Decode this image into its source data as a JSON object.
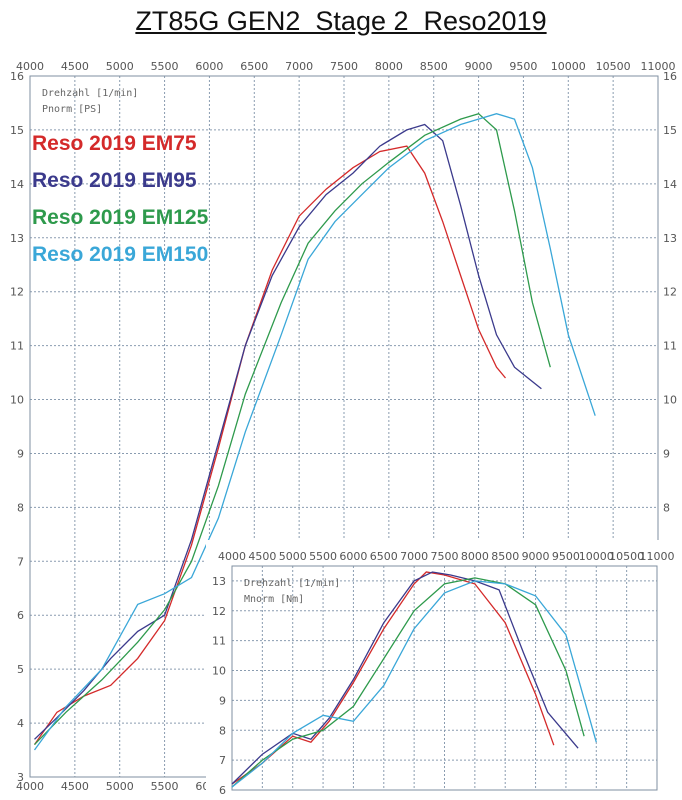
{
  "title": "ZT85G GEN2  Stage 2  Reso2019",
  "colors": {
    "EM75": "#d42a2a",
    "EM95": "#3b3a8c",
    "EM125": "#2e9a4c",
    "EM150": "#3aa7d8",
    "grid": "#8a9cb0"
  },
  "chart_data": [
    {
      "type": "line",
      "name": "power",
      "xticks": [
        4000,
        4500,
        5000,
        5500,
        6000,
        6500,
        7000,
        7500,
        8000,
        8500,
        9000,
        9500,
        10000,
        10500,
        11000
      ],
      "yticks": [
        3,
        4,
        5,
        6,
        7,
        8,
        9,
        10,
        11,
        12,
        13,
        14,
        15,
        16
      ],
      "xlim": [
        4000,
        11000
      ],
      "ylim": [
        3,
        16
      ],
      "axis_text": [
        "Drehzahl [1/min]",
        "Pnorm [PS]"
      ],
      "legend": [
        "Reso 2019 EM75",
        "Reso 2019 EM95",
        "Reso 2019 EM125",
        "Reso 2019 EM150"
      ],
      "legend_position": "top-left",
      "series": [
        {
          "name": "Reso 2019 EM75",
          "x": [
            4050,
            4300,
            4600,
            4900,
            5200,
            5500,
            5800,
            6100,
            6400,
            6700,
            7000,
            7300,
            7600,
            7900,
            8200,
            8400,
            8600,
            8800,
            9000,
            9200,
            9300
          ],
          "y": [
            3.6,
            4.2,
            4.5,
            4.7,
            5.2,
            5.9,
            7.3,
            9.1,
            11.0,
            12.4,
            13.4,
            13.9,
            14.3,
            14.6,
            14.7,
            14.2,
            13.3,
            12.3,
            11.3,
            10.6,
            10.4
          ]
        },
        {
          "name": "Reso 2019 EM95",
          "x": [
            4050,
            4300,
            4600,
            4900,
            5200,
            5500,
            5800,
            6100,
            6400,
            6700,
            7000,
            7300,
            7600,
            7900,
            8200,
            8400,
            8600,
            8800,
            9000,
            9200,
            9400,
            9700
          ],
          "y": [
            3.7,
            4.1,
            4.6,
            5.2,
            5.7,
            6.0,
            7.4,
            9.2,
            11.0,
            12.3,
            13.2,
            13.8,
            14.2,
            14.7,
            15.0,
            15.1,
            14.8,
            13.6,
            12.3,
            11.2,
            10.6,
            10.2
          ]
        },
        {
          "name": "Reso 2019 EM125",
          "x": [
            4050,
            4400,
            4800,
            5200,
            5500,
            5800,
            6100,
            6400,
            6800,
            7100,
            7400,
            7700,
            8000,
            8400,
            8800,
            9000,
            9200,
            9400,
            9600,
            9800
          ],
          "y": [
            3.6,
            4.2,
            4.8,
            5.5,
            6.1,
            7.0,
            8.4,
            10.1,
            11.8,
            12.9,
            13.5,
            14.0,
            14.4,
            14.9,
            15.2,
            15.3,
            15.0,
            13.5,
            11.8,
            10.6
          ]
        },
        {
          "name": "Reso 2019 EM150",
          "x": [
            4050,
            4400,
            4800,
            5200,
            5500,
            5800,
            6100,
            6400,
            6800,
            7100,
            7400,
            7700,
            8000,
            8400,
            8800,
            9200,
            9400,
            9600,
            9800,
            10000,
            10300
          ],
          "y": [
            3.5,
            4.3,
            5.0,
            6.2,
            6.4,
            6.7,
            7.8,
            9.4,
            11.2,
            12.6,
            13.3,
            13.8,
            14.3,
            14.8,
            15.1,
            15.3,
            15.2,
            14.3,
            12.8,
            11.2,
            9.7
          ]
        }
      ]
    },
    {
      "type": "line",
      "name": "torque",
      "xticks": [
        4000,
        4500,
        5000,
        5500,
        6000,
        6500,
        7000,
        7500,
        8000,
        8500,
        9000,
        9500,
        10000,
        10500,
        11000
      ],
      "yticks": [
        6,
        7,
        8,
        9,
        10,
        11,
        12,
        13
      ],
      "xlim": [
        4000,
        11000
      ],
      "ylim": [
        6,
        13.5
      ],
      "axis_text": [
        "Drehzahl [1/min]",
        "Mnorm [Nm]"
      ],
      "series": [
        {
          "name": "Reso 2019 EM75",
          "x": [
            4000,
            4500,
            5000,
            5300,
            5600,
            6000,
            6500,
            7000,
            7200,
            7500,
            8000,
            8500,
            9000,
            9300
          ],
          "y": [
            6.2,
            6.9,
            7.8,
            7.6,
            8.3,
            9.6,
            11.4,
            12.9,
            13.3,
            13.2,
            12.9,
            11.6,
            9.2,
            7.5
          ]
        },
        {
          "name": "Reso 2019 EM95",
          "x": [
            4000,
            4500,
            5000,
            5300,
            5600,
            6000,
            6500,
            7000,
            7300,
            7600,
            8000,
            8400,
            8800,
            9200,
            9700
          ],
          "y": [
            6.2,
            7.2,
            7.9,
            7.7,
            8.4,
            9.7,
            11.6,
            13.0,
            13.3,
            13.2,
            13.0,
            12.7,
            10.6,
            8.6,
            7.4
          ]
        },
        {
          "name": "Reso 2019 EM125",
          "x": [
            4000,
            4500,
            5000,
            5500,
            6000,
            6500,
            7000,
            7500,
            8000,
            8500,
            9000,
            9500,
            9800
          ],
          "y": [
            6.1,
            7.0,
            7.7,
            8.0,
            8.8,
            10.4,
            12.0,
            12.9,
            13.1,
            12.9,
            12.2,
            10.0,
            7.8
          ]
        },
        {
          "name": "Reso 2019 EM150",
          "x": [
            4000,
            4500,
            5000,
            5500,
            6000,
            6500,
            7000,
            7500,
            8000,
            8500,
            9000,
            9500,
            10000
          ],
          "y": [
            6.1,
            6.9,
            7.9,
            8.5,
            8.3,
            9.5,
            11.4,
            12.6,
            13.0,
            12.9,
            12.5,
            11.2,
            7.6
          ]
        }
      ]
    }
  ]
}
